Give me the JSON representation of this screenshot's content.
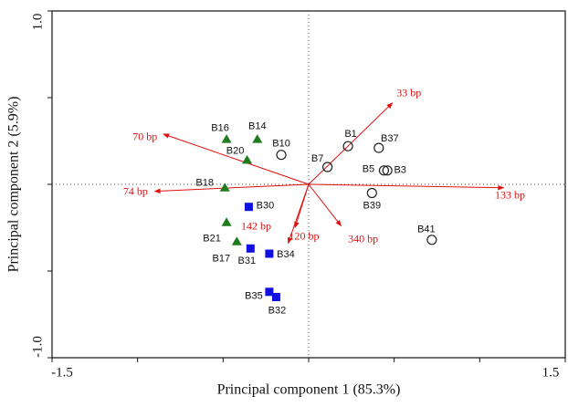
{
  "chart_data": {
    "type": "biplot",
    "xlabel": "Principal component 1 (85.3%)",
    "ylabel": "Principal component 2 (5.9%)",
    "xlim": [
      -1.5,
      1.5
    ],
    "ylim": [
      -1,
      1
    ],
    "xticks": [
      {
        "value": -1.5,
        "label": "-1.5"
      },
      {
        "value": -1,
        "label": null
      },
      {
        "value": -0.5,
        "label": null
      },
      {
        "value": 0,
        "label": null
      },
      {
        "value": 0.5,
        "label": null
      },
      {
        "value": 1,
        "label": null
      },
      {
        "value": 1.5,
        "label": "1.5"
      }
    ],
    "yticks": [
      {
        "value": -1,
        "label": "-1.0"
      },
      {
        "value": -0.5,
        "label": null
      },
      {
        "value": 0,
        "label": null
      },
      {
        "value": 0.5,
        "label": null
      },
      {
        "value": 1,
        "label": "1.0"
      }
    ],
    "series": [
      {
        "marker": "triangle",
        "color": "#1e7b1e",
        "labels": [
          "B16",
          "B14",
          "B20",
          "B18",
          "B21",
          "B17"
        ],
        "x": [
          -0.48,
          -0.3,
          -0.36,
          -0.49,
          -0.48,
          -0.42
        ],
        "values": [
          0.26,
          0.26,
          0.14,
          -0.02,
          -0.22,
          -0.33
        ]
      },
      {
        "marker": "circle",
        "color": "#222222",
        "labels": [
          "B10",
          "B1",
          "B7",
          "B37",
          "B5",
          "B3",
          "B39",
          "B41"
        ],
        "x": [
          -0.16,
          0.23,
          0.11,
          0.41,
          0.44,
          0.46,
          0.37,
          0.72
        ],
        "values": [
          0.17,
          0.22,
          0.1,
          0.21,
          0.08,
          0.08,
          -0.05,
          -0.32
        ]
      },
      {
        "marker": "square",
        "color": "#1010e0",
        "labels": [
          "B30",
          "B31",
          "B34",
          "B35",
          "B32"
        ],
        "x": [
          -0.35,
          -0.34,
          -0.23,
          -0.23,
          -0.19
        ],
        "values": [
          -0.13,
          -0.37,
          -0.4,
          -0.62,
          -0.65
        ]
      }
    ],
    "loadings": {
      "color": "#e01010",
      "labels": [
        "33 bp",
        "70 bp",
        "74 bp",
        "133 bp",
        "142 bp",
        "120 bp",
        "340 bp"
      ],
      "x": [
        0.49,
        -0.85,
        -0.9,
        1.14,
        -0.12,
        -0.08,
        0.19
      ],
      "values": [
        0.47,
        0.29,
        -0.04,
        -0.02,
        -0.34,
        -0.25,
        -0.24
      ]
    }
  }
}
